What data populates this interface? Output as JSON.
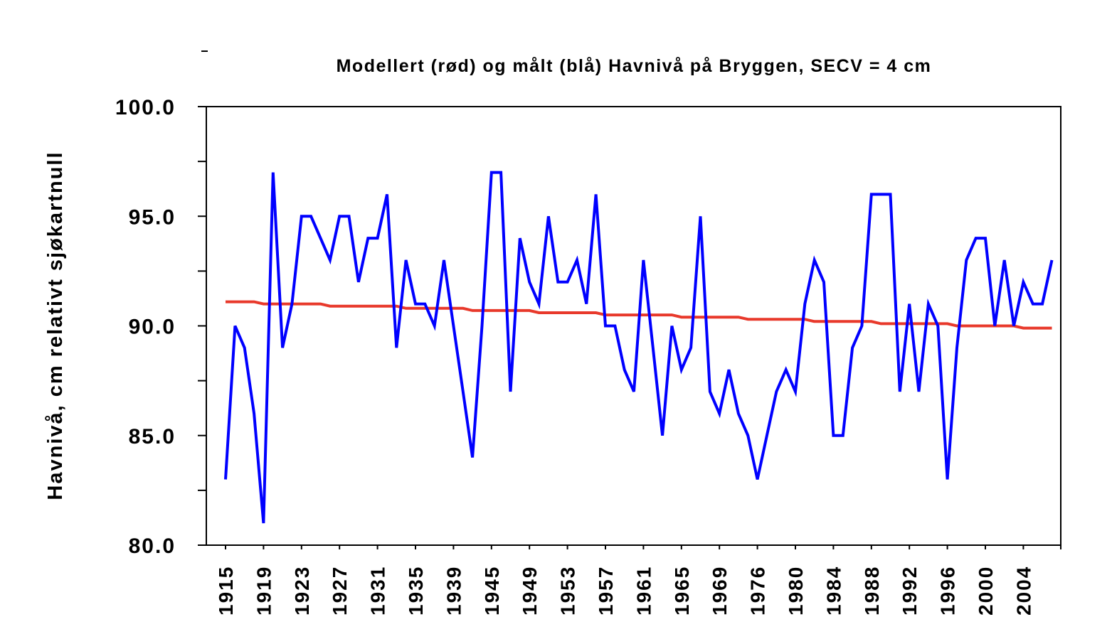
{
  "chart_data": {
    "type": "line",
    "title": "Modellert (rød) og målt (blå) Havnivå på Bryggen, SECV = 4 cm",
    "xlabel": "",
    "ylabel": "Havnivå, cm relativt sjøkartnull",
    "ylim": [
      80,
      100
    ],
    "y_ticks": [
      "80.0",
      "85.0",
      "90.0",
      "95.0",
      "100.0"
    ],
    "x_tick_labels": [
      "1915",
      "1919",
      "1923",
      "1927",
      "1931",
      "1935",
      "1939",
      "1945",
      "1949",
      "1953",
      "1957",
      "1961",
      "1965",
      "1969",
      "1976",
      "1980",
      "1984",
      "1988",
      "1992",
      "1996",
      "2000",
      "2004"
    ],
    "grid": false,
    "series": [
      {
        "color": "#0000ff",
        "values": [
          83,
          90,
          89,
          86,
          81,
          97,
          89,
          91,
          95,
          95,
          94,
          93,
          95,
          95,
          92,
          94,
          94,
          96,
          89,
          93,
          91,
          91,
          90,
          93,
          90,
          87,
          84,
          90,
          97,
          97,
          87,
          94,
          92,
          91,
          95,
          92,
          92,
          93,
          91,
          96,
          90,
          90,
          88,
          87,
          93,
          89,
          85,
          90,
          88,
          89,
          95,
          87,
          86,
          88,
          86,
          85,
          83,
          85,
          87,
          88,
          87,
          91,
          93,
          92,
          85,
          85,
          89,
          90,
          96,
          96,
          96,
          87,
          91,
          87,
          91,
          90,
          83,
          89,
          93,
          94,
          94,
          90,
          93,
          90,
          92,
          91,
          91,
          93
        ]
      },
      {
        "color": "#e8392b",
        "values": [
          91.1,
          91.1,
          91.1,
          91.1,
          91.0,
          91.0,
          91.0,
          91.0,
          91.0,
          91.0,
          91.0,
          90.9,
          90.9,
          90.9,
          90.9,
          90.9,
          90.9,
          90.9,
          90.9,
          90.8,
          90.8,
          90.8,
          90.8,
          90.8,
          90.8,
          90.8,
          90.7,
          90.7,
          90.7,
          90.7,
          90.7,
          90.7,
          90.7,
          90.6,
          90.6,
          90.6,
          90.6,
          90.6,
          90.6,
          90.6,
          90.5,
          90.5,
          90.5,
          90.5,
          90.5,
          90.5,
          90.5,
          90.5,
          90.4,
          90.4,
          90.4,
          90.4,
          90.4,
          90.4,
          90.4,
          90.3,
          90.3,
          90.3,
          90.3,
          90.3,
          90.3,
          90.3,
          90.2,
          90.2,
          90.2,
          90.2,
          90.2,
          90.2,
          90.2,
          90.1,
          90.1,
          90.1,
          90.1,
          90.1,
          90.1,
          90.1,
          90.1,
          90.0,
          90.0,
          90.0,
          90.0,
          90.0,
          90.0,
          90.0,
          89.9,
          89.9,
          89.9,
          89.9
        ]
      }
    ]
  }
}
